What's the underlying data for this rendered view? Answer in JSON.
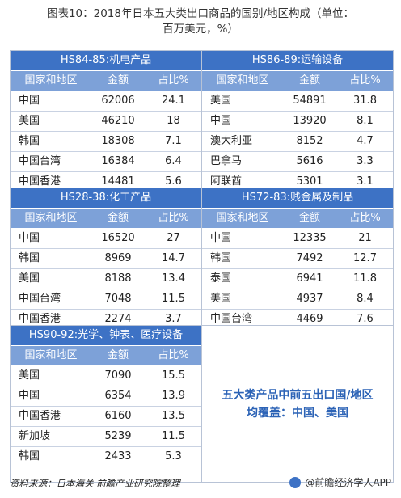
{
  "title_line1": "图表10：2018年日本五大类出口商品的国别/地区构成（单位：",
  "title_line2": "百万美元，%）",
  "col_headers": {
    "country": "国家和地区",
    "amount": "金额",
    "share": "占比%"
  },
  "blocks": [
    {
      "title": "HS84-85:机电产品",
      "rows": [
        {
          "country": "中国",
          "amount": "62006",
          "share": "24.1"
        },
        {
          "country": "美国",
          "amount": "46210",
          "share": "18"
        },
        {
          "country": "韩国",
          "amount": "18308",
          "share": "7.1"
        },
        {
          "country": "中国台湾",
          "amount": "16384",
          "share": "6.4"
        },
        {
          "country": "中国香港",
          "amount": "14481",
          "share": "5.6"
        }
      ]
    },
    {
      "title": "HS86-89:运输设备",
      "rows": [
        {
          "country": "美国",
          "amount": "54891",
          "share": "31.8"
        },
        {
          "country": "中国",
          "amount": "13920",
          "share": "8.1"
        },
        {
          "country": "澳大利亚",
          "amount": "8152",
          "share": "4.7"
        },
        {
          "country": "巴拿马",
          "amount": "5616",
          "share": "3.3"
        },
        {
          "country": "阿联酋",
          "amount": "5301",
          "share": "3.1"
        }
      ]
    },
    {
      "title": "HS28-38:化工产品",
      "rows": [
        {
          "country": "中国",
          "amount": "16520",
          "share": "27"
        },
        {
          "country": "韩国",
          "amount": "8969",
          "share": "14.7"
        },
        {
          "country": "美国",
          "amount": "8188",
          "share": "13.4"
        },
        {
          "country": "中国台湾",
          "amount": "7048",
          "share": "11.5"
        },
        {
          "country": "中国香港",
          "amount": "2274",
          "share": "3.7"
        }
      ]
    },
    {
      "title": "HS72-83:贱金属及制品",
      "rows": [
        {
          "country": "中国",
          "amount": "12335",
          "share": "21"
        },
        {
          "country": "韩国",
          "amount": "7492",
          "share": "12.7"
        },
        {
          "country": "泰国",
          "amount": "6941",
          "share": "11.8"
        },
        {
          "country": "美国",
          "amount": "4937",
          "share": "8.4"
        },
        {
          "country": "中国台湾",
          "amount": "4469",
          "share": "7.6"
        }
      ]
    },
    {
      "title": "HS90-92:光学、钟表、医疗设备",
      "rows": [
        {
          "country": "美国",
          "amount": "7090",
          "share": "15.5"
        },
        {
          "country": "中国",
          "amount": "6354",
          "share": "13.9"
        },
        {
          "country": "中国香港",
          "amount": "6160",
          "share": "13.5"
        },
        {
          "country": "新加坡",
          "amount": "5239",
          "share": "11.5"
        },
        {
          "country": "韩国",
          "amount": "2433",
          "share": "5.3"
        }
      ]
    }
  ],
  "note_line1": "五大类产品中前五出口国/地区",
  "note_line2": "均覆盖：中国、美国",
  "source": "资料来源：日本海关  前瞻产业研究院整理",
  "logo_text": "@前瞻经济学人APP",
  "colors": {
    "header_blue": "#3d72c5",
    "subheader_blue": "#7da1d8",
    "note_blue": "#2c63b6"
  }
}
